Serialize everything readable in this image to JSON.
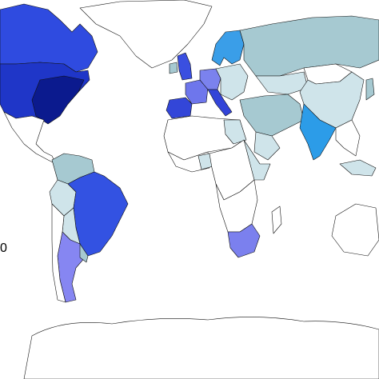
{
  "legend": {
    "label": "0"
  }
}
